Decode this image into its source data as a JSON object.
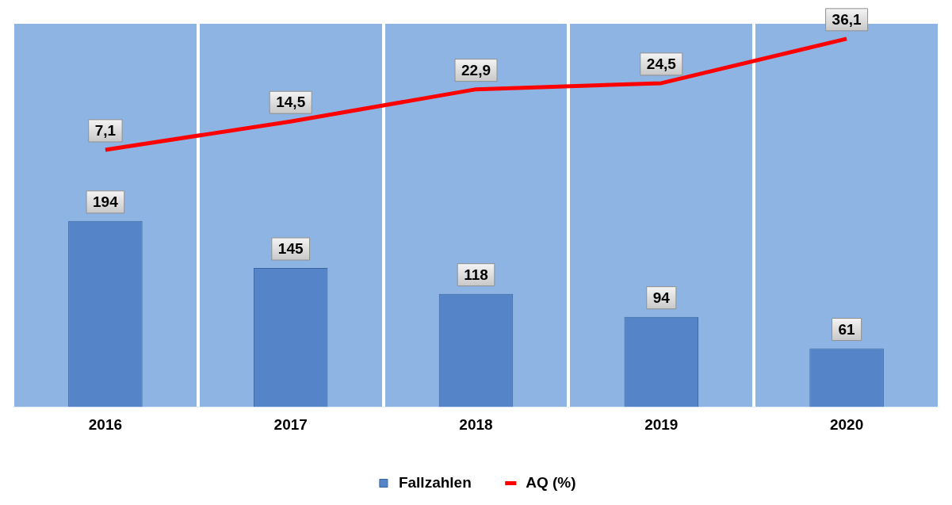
{
  "chart_data": {
    "type": "bar",
    "categories": [
      "2016",
      "2017",
      "2018",
      "2019",
      "2020"
    ],
    "series": [
      {
        "name": "Fallzahlen",
        "color": "#5585c8",
        "values": [
          194,
          145,
          118,
          94,
          61
        ],
        "value_labels": [
          "194",
          "145",
          "118",
          "94",
          "61"
        ]
      },
      {
        "name": "AQ (%)",
        "type": "line",
        "axis": "y2",
        "color": "#ff0000",
        "values": [
          7.1,
          14.5,
          22.9,
          24.5,
          36.1
        ],
        "value_labels": [
          "7,1",
          "14,5",
          "22,9",
          "24,5",
          "36,1"
        ]
      }
    ],
    "ylim": [
      0,
      400
    ],
    "y2lim": [
      -60,
      40
    ],
    "grid": "x",
    "legend": "bottom",
    "tick_labels": "x",
    "marker": "none"
  }
}
